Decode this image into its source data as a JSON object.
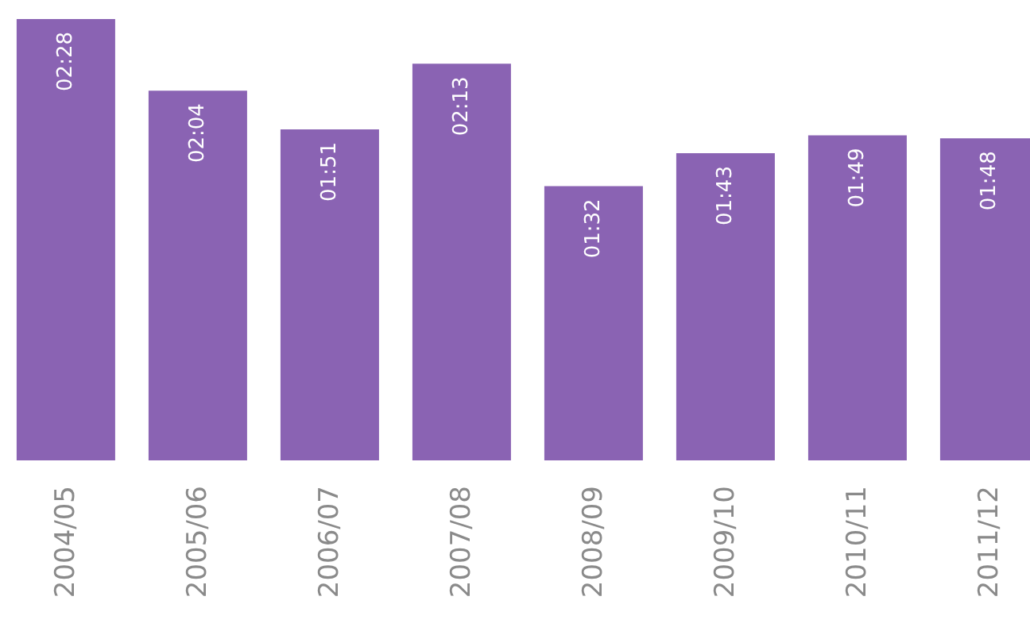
{
  "chart_data": {
    "type": "bar",
    "categories": [
      "2004/05",
      "2005/06",
      "2006/07",
      "2007/08",
      "2008/09",
      "2009/10",
      "2010/11",
      "2011/12"
    ],
    "values": [
      148,
      124,
      111,
      133,
      92,
      103,
      109,
      108
    ],
    "value_labels": [
      "02:28",
      "02:04",
      "01:51",
      "02:13",
      "01:32",
      "01:43",
      "01:49",
      "01:48"
    ],
    "color": "#8a63b3",
    "grid": false,
    "legend": false
  }
}
